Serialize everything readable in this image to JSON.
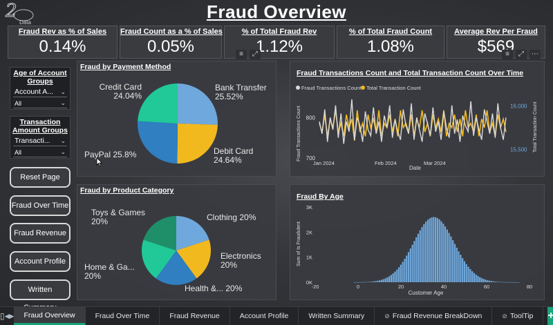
{
  "page_title": "Fraud Overview",
  "logo_text": "Data",
  "kpis": [
    {
      "label": "Fraud Rev as % of Sales",
      "value": "0.14%"
    },
    {
      "label": "Fraud Count as a % of Sales",
      "value": "0.05%"
    },
    {
      "label": "% of Total Fraud Rev",
      "value": "1.12%"
    },
    {
      "label": "% of Total Fraud Count",
      "value": "1.08%"
    },
    {
      "label": "Average Rev Per Fraud",
      "value": "$569"
    }
  ],
  "slicers": [
    {
      "title": "Age of Account Groups",
      "selected": "Account A...",
      "filter": "All"
    },
    {
      "title": "Transaction Amount Groups",
      "selected": "Transacti...",
      "filter": "All"
    }
  ],
  "nav_buttons": [
    "Reset Page",
    "Fraud Over Time",
    "Fraud Revenue",
    "Account Profile",
    "Written Summary"
  ],
  "payment_chart": {
    "title": "Fraud by Payment Method",
    "slices": [
      {
        "name": "Bank Transfer",
        "pct": "25.52%",
        "value": 25.52,
        "color": "#6fa8dc"
      },
      {
        "name": "Debit Card",
        "pct": "24.64%",
        "value": 24.64,
        "color": "#f2b91f"
      },
      {
        "name": "PayPal",
        "pct": "25.8%",
        "value": 25.8,
        "color": "#2f7fc1"
      },
      {
        "name": "Credit Card",
        "pct": "24.04%",
        "value": 24.04,
        "color": "#20c997"
      }
    ]
  },
  "category_chart": {
    "title": "Fraud by Product Category",
    "slices": [
      {
        "name": "Clothing",
        "pct": "20%",
        "value": 20,
        "color": "#6fa8dc",
        "label": "Clothing 20%"
      },
      {
        "name": "Electronics",
        "pct": "20%",
        "value": 20,
        "color": "#f2b91f",
        "label": "Electronics 20%"
      },
      {
        "name": "Health &...",
        "pct": "20%",
        "value": 20,
        "color": "#2f7fc1",
        "label": "Health &... 20%"
      },
      {
        "name": "Home & Ga...",
        "pct": "20%",
        "value": 20,
        "color": "#20c997",
        "label": "Home & Ga... 20%"
      },
      {
        "name": "Toys & Games",
        "pct": "20%",
        "value": 20,
        "color": "#1f8f6a",
        "label": "Toys & Games 20%"
      }
    ]
  },
  "line_chart": {
    "title": "Fraud Transactions Count and Total Transaction Count Over Time",
    "legend": [
      "Fraud Transactions Count",
      "Total Transaction Count"
    ],
    "legend_colors": [
      "#d9d9d9",
      "#f2b91f"
    ],
    "ylabel_left": "Fraud Transactions Count",
    "ylabel_right": "Total Transaction Count",
    "xlabel": "Date",
    "y_left_ticks": [
      "800",
      "700"
    ],
    "y_right_ticks": [
      "16,000",
      "15,500"
    ],
    "x_ticks": [
      "Jan 2024",
      "Feb 2024",
      "Mar 2024"
    ]
  },
  "chart_data": [
    {
      "type": "line",
      "title": "Fraud Transactions Count and Total Transaction Count Over Time",
      "xlabel": "Date",
      "ylabel": "Fraud Transactions Count",
      "x_range": [
        "2024-01-01",
        "2024-04-10"
      ],
      "ylim": [
        700,
        850
      ],
      "y2lim": [
        15400,
        16100
      ],
      "series": [
        {
          "name": "Fraud Transactions Count",
          "values": [
            790,
            760,
            820,
            740,
            800,
            770,
            830,
            750,
            810,
            735,
            790,
            765,
            845,
            745,
            800,
            780,
            740,
            815,
            770,
            755,
            825,
            760,
            790,
            740,
            805,
            775,
            830,
            750,
            795,
            765,
            745,
            820,
            780,
            760,
            835,
            745,
            800,
            770,
            740,
            810,
            785,
            755,
            825,
            765,
            790,
            745,
            815,
            775,
            750,
            830,
            760,
            795,
            740,
            805,
            780,
            765,
            840,
            755,
            800,
            770,
            745,
            820,
            790,
            760,
            810,
            750,
            835,
            775,
            745,
            800
          ]
        },
        {
          "name": "Total Transaction Count",
          "values": [
            15800,
            15700,
            15900,
            15650,
            15850,
            15750,
            15950,
            15700,
            15800,
            15650,
            15900,
            15750,
            15850,
            15600,
            15950,
            15700,
            15800,
            15650,
            15900,
            15750,
            15850,
            15700,
            15950,
            15650,
            15800,
            15750,
            15900,
            15700,
            15850,
            15650,
            15950,
            15750,
            15800,
            15700,
            15900,
            15650,
            15850,
            15750,
            15950,
            15700,
            15800,
            15650,
            15900,
            15750,
            15850,
            15700,
            15950,
            15650,
            15800,
            15750,
            15900,
            15700,
            15850,
            15650,
            15950,
            15750,
            15800,
            15700,
            15900,
            15650,
            15850,
            15750,
            15950,
            15700,
            15800,
            15650,
            15900,
            15750,
            15850,
            15700
          ]
        }
      ]
    },
    {
      "type": "bar",
      "title": "Fraud By Age",
      "xlabel": "Customer Age",
      "ylabel": "Sum of Is Fraudulent",
      "xlim": [
        -20,
        80
      ],
      "ylim": [
        0,
        3000
      ],
      "x_ticks": [
        "-20",
        "0",
        "20",
        "40",
        "60",
        "80"
      ],
      "y_ticks": [
        "0K",
        "1K",
        "2K",
        "3K"
      ],
      "distribution": {
        "mean": 35,
        "sd": 9.5,
        "peak": 2600,
        "from": -2,
        "to": 75
      }
    },
    {
      "type": "pie",
      "title": "Fraud by Payment Method",
      "categories": [
        "Bank Transfer",
        "Debit Card",
        "PayPal",
        "Credit Card"
      ],
      "values": [
        25.52,
        24.64,
        25.8,
        24.04
      ]
    },
    {
      "type": "pie",
      "title": "Fraud by Product Category",
      "categories": [
        "Clothing",
        "Electronics",
        "Health &...",
        "Home & Ga...",
        "Toys & Games"
      ],
      "values": [
        20,
        20,
        20,
        20,
        20
      ]
    }
  ],
  "age_chart": {
    "title": "Fraud By Age",
    "xlabel": "Customer Age",
    "ylabel": "Sum of Is Fraudulent",
    "x_ticks": [
      "-20",
      "0",
      "20",
      "40",
      "60",
      "80"
    ],
    "y_ticks": [
      "0K",
      "1K",
      "2K",
      "3K"
    ],
    "bar_color": "#6fa8dc"
  },
  "tabs": [
    {
      "label": "Fraud Overview",
      "active": true,
      "hidden": false
    },
    {
      "label": "Fraud Over Time",
      "active": false,
      "hidden": false
    },
    {
      "label": "Fraud Revenue",
      "active": false,
      "hidden": false
    },
    {
      "label": "Account Profile",
      "active": false,
      "hidden": false
    },
    {
      "label": "Written Summary",
      "active": false,
      "hidden": false
    },
    {
      "label": "Fraud Revenue BreakDown",
      "active": false,
      "hidden": true
    },
    {
      "label": "ToolTip",
      "active": false,
      "hidden": true
    }
  ],
  "add_tab_label": "+"
}
